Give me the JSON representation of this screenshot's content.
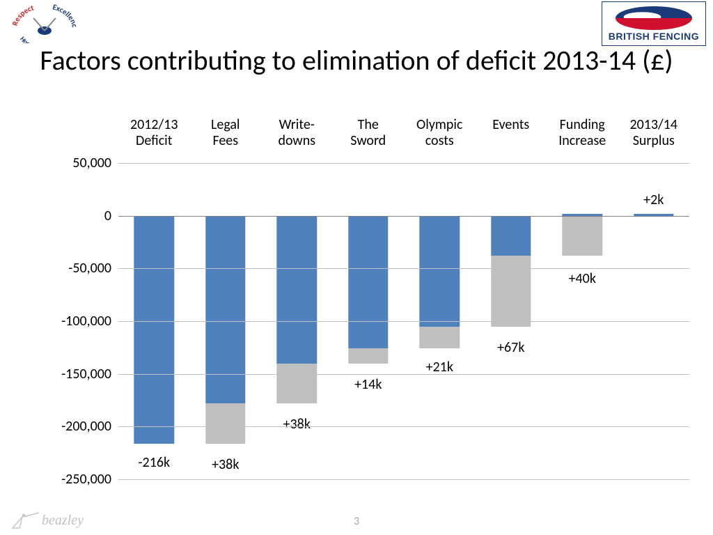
{
  "title": "Factors contributing to elimination of deficit 2013-14 (£)",
  "brand": "BRITISH FENCING",
  "sponsor": "beazley",
  "page_number": "3",
  "chart": {
    "type": "waterfall-bar",
    "background_color": "#ffffff",
    "grid_color": "#bfbfbf",
    "zero_line_color": "#808080",
    "bar_color_blue": "#4f81bd",
    "bar_color_grey": "#bfbfbf",
    "bar_width_pct": 56,
    "label_fontsize": 20,
    "ylim": [
      -250000,
      50000
    ],
    "ytick_step": 50000,
    "yticks": [
      "50,000",
      "0",
      "-50,000",
      "-100,000",
      "-150,000",
      "-200,000",
      "-250,000"
    ],
    "categories": [
      "2012/13 Deficit",
      "Legal Fees",
      "Write-downs",
      "The Sword",
      "Olympic costs",
      "Events",
      "Funding Increase",
      "2013/14 Surplus"
    ],
    "bars": [
      {
        "blue_range": [
          -216000,
          0
        ],
        "grey_range": null,
        "label": "-216k",
        "label_pos": -226000
      },
      {
        "blue_range": [
          -178000,
          0
        ],
        "grey_range": [
          -216000,
          -178000
        ],
        "label": "+38k",
        "label_pos": -228000
      },
      {
        "blue_range": [
          -140000,
          0
        ],
        "grey_range": [
          -178000,
          -140000
        ],
        "label": "+38k",
        "label_pos": -190000
      },
      {
        "blue_range": [
          -126000,
          0
        ],
        "grey_range": [
          -140000,
          -126000
        ],
        "label": "+14k",
        "label_pos": -152000
      },
      {
        "blue_range": [
          -105000,
          0
        ],
        "grey_range": [
          -126000,
          -105000
        ],
        "label": "+21k",
        "label_pos": -136000
      },
      {
        "blue_range": [
          -38000,
          0
        ],
        "grey_range": [
          -105000,
          -38000
        ],
        "label": "+67k",
        "label_pos": -117000
      },
      {
        "blue_range": [
          0,
          2000
        ],
        "grey_range": [
          -38000,
          0
        ],
        "label": "+40k",
        "label_pos": -52000
      },
      {
        "blue_range": [
          0,
          2000
        ],
        "grey_range": null,
        "label": "+2k",
        "label_pos": 23000
      }
    ]
  }
}
